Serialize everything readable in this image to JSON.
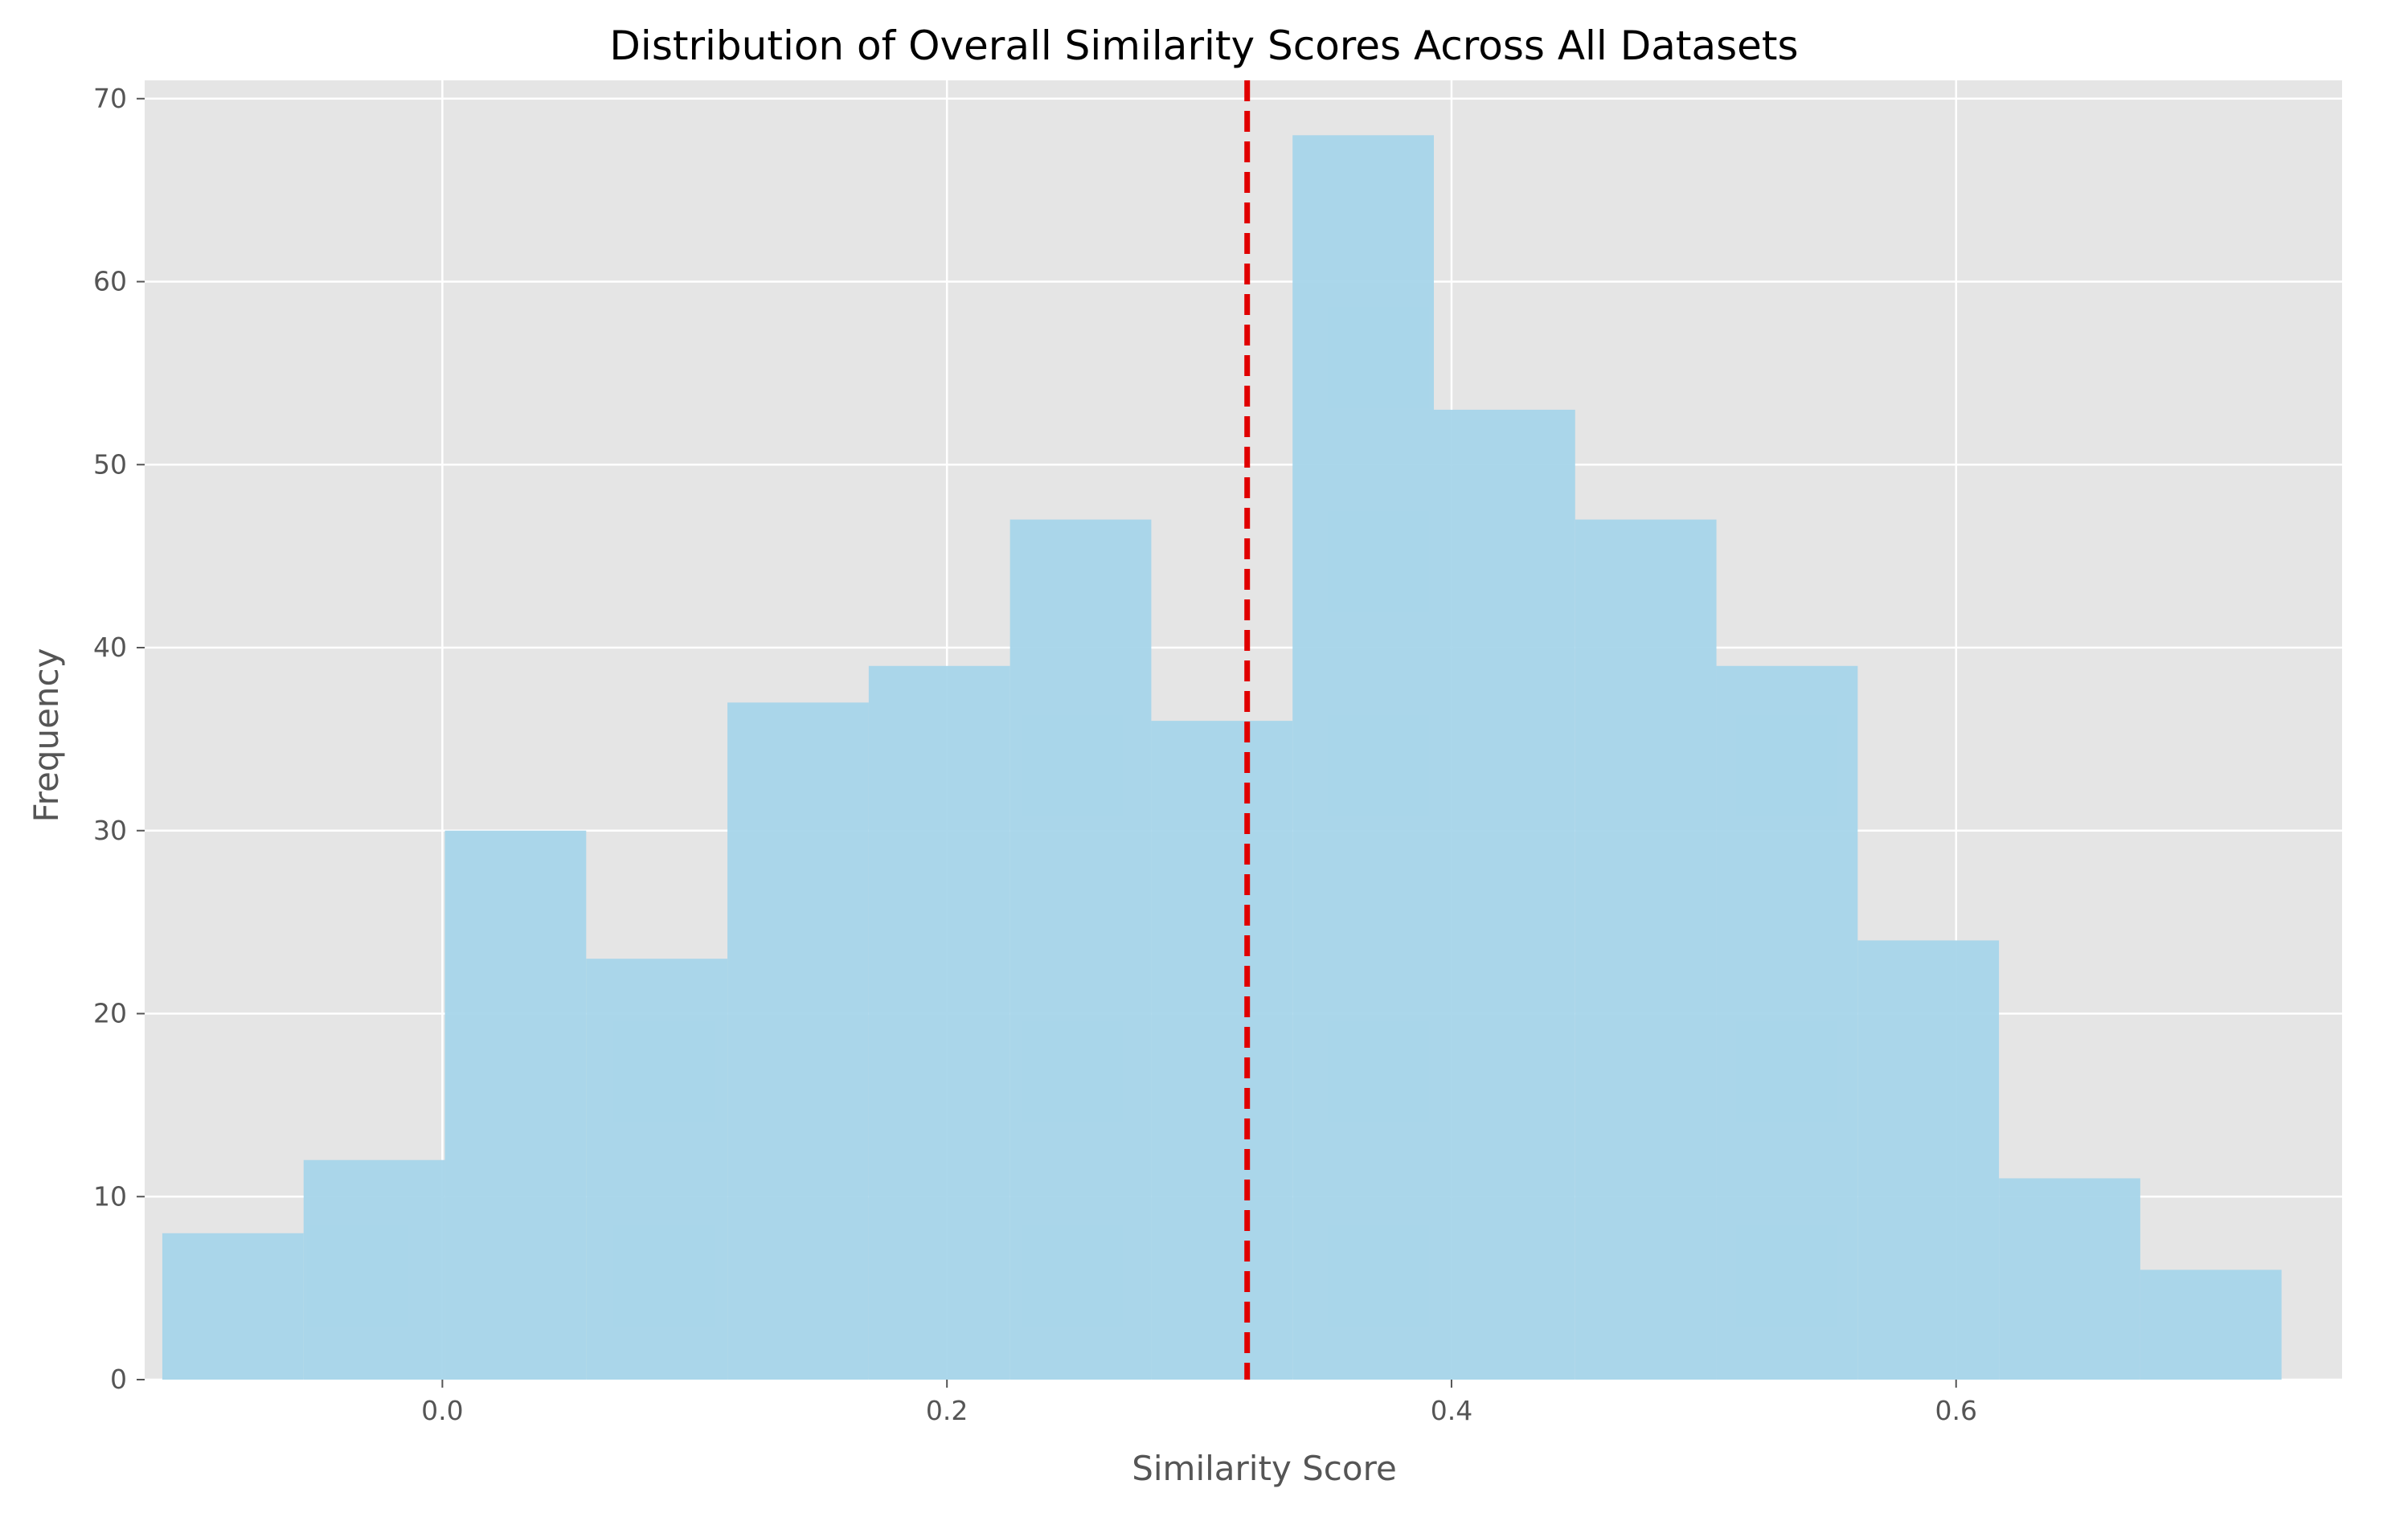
{
  "chart_data": {
    "type": "bar",
    "title": "Distribution of Overall Similarity Scores Across All Datasets",
    "xlabel": "Similarity Score",
    "ylabel": "Frequency",
    "xlim": [
      -0.118,
      0.753
    ],
    "ylim": [
      0,
      71
    ],
    "xticks": [
      0.0,
      0.2,
      0.4,
      0.6
    ],
    "xtick_labels": [
      "0.0",
      "0.2",
      "0.4",
      "0.6"
    ],
    "yticks": [
      0,
      10,
      20,
      30,
      40,
      50,
      60,
      70
    ],
    "ytick_labels": [
      "0",
      "10",
      "20",
      "30",
      "40",
      "50",
      "60",
      "70"
    ],
    "bins": [
      {
        "x0": -0.111,
        "x1": -0.055,
        "count": 8
      },
      {
        "x0": -0.055,
        "x1": 0.001,
        "count": 12
      },
      {
        "x0": 0.001,
        "x1": 0.057,
        "count": 30
      },
      {
        "x0": 0.057,
        "x1": 0.113,
        "count": 23
      },
      {
        "x0": 0.113,
        "x1": 0.169,
        "count": 37
      },
      {
        "x0": 0.169,
        "x1": 0.225,
        "count": 39
      },
      {
        "x0": 0.225,
        "x1": 0.281,
        "count": 47
      },
      {
        "x0": 0.281,
        "x1": 0.337,
        "count": 36
      },
      {
        "x0": 0.337,
        "x1": 0.393,
        "count": 68
      },
      {
        "x0": 0.393,
        "x1": 0.449,
        "count": 53
      },
      {
        "x0": 0.449,
        "x1": 0.505,
        "count": 47
      },
      {
        "x0": 0.505,
        "x1": 0.561,
        "count": 39
      },
      {
        "x0": 0.561,
        "x1": 0.617,
        "count": 24
      },
      {
        "x0": 0.617,
        "x1": 0.673,
        "count": 11
      },
      {
        "x0": 0.673,
        "x1": 0.729,
        "count": 6
      }
    ],
    "vline": {
      "x": 0.319,
      "style": "dashed",
      "color": "#e00000"
    },
    "bar_color": "#a6d5ea",
    "background_color": "#e5e5e5",
    "grid": true,
    "grid_color": "#ffffff"
  }
}
